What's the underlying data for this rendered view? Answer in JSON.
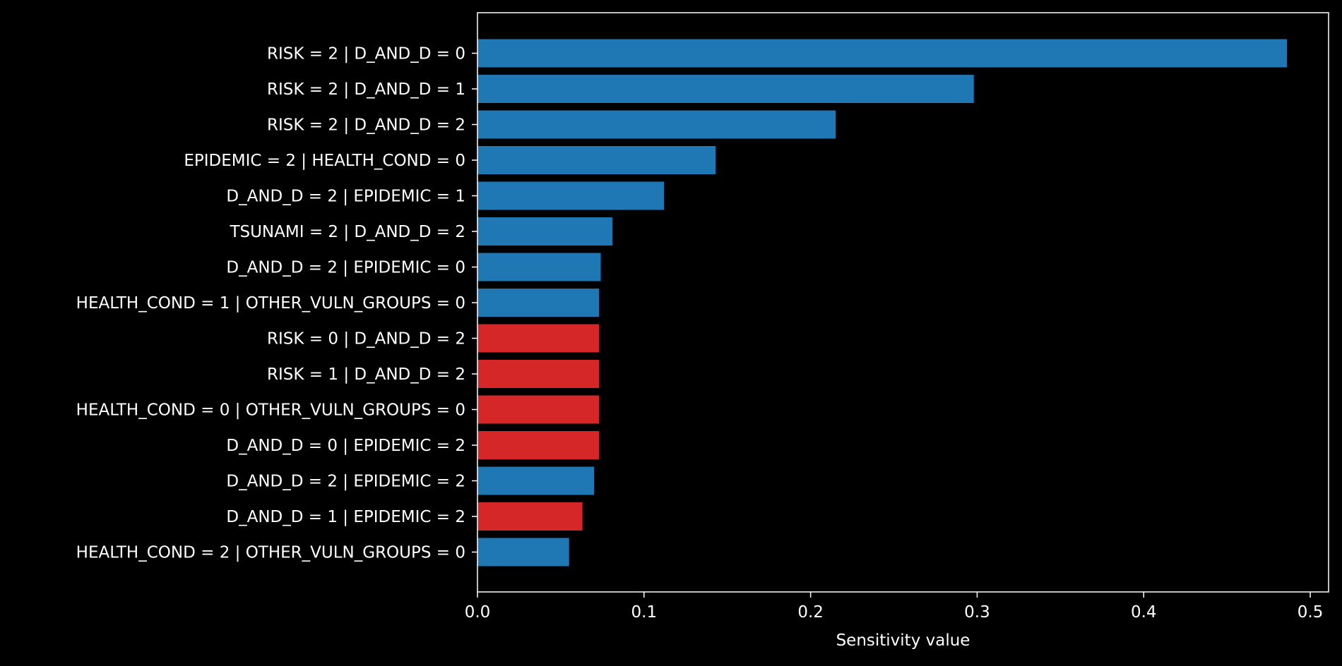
{
  "chart_data": {
    "type": "bar",
    "orientation": "horizontal",
    "title": "",
    "xlabel": "Sensitivity value",
    "ylabel": "",
    "xlim": [
      0,
      0.511
    ],
    "xticks": [
      0.0,
      0.1,
      0.2,
      0.3,
      0.4,
      0.5
    ],
    "xtick_labels": [
      "0.0",
      "0.1",
      "0.2",
      "0.3",
      "0.4",
      "0.5"
    ],
    "grid": false,
    "legend": "none",
    "colors": {
      "positive": "#1f77b4",
      "negative": "#d62728",
      "background": "#000000",
      "foreground": "#ffffff"
    },
    "categories": [
      "RISK = 2 | D_AND_D = 0",
      "RISK = 2 | D_AND_D = 1",
      "RISK = 2 | D_AND_D = 2",
      "EPIDEMIC = 2 | HEALTH_COND = 0",
      "D_AND_D = 2 | EPIDEMIC = 1",
      "TSUNAMI = 2 | D_AND_D = 2",
      "D_AND_D = 2 | EPIDEMIC = 0",
      "HEALTH_COND = 1 | OTHER_VULN_GROUPS = 0",
      "RISK = 0 | D_AND_D = 2",
      "RISK = 1 | D_AND_D = 2",
      "HEALTH_COND = 0 | OTHER_VULN_GROUPS = 0",
      "D_AND_D = 0 | EPIDEMIC = 2",
      "D_AND_D = 2 | EPIDEMIC = 2",
      "D_AND_D = 1 | EPIDEMIC = 2",
      "HEALTH_COND = 2 | OTHER_VULN_GROUPS = 0"
    ],
    "values": [
      0.486,
      0.298,
      0.215,
      0.143,
      0.112,
      0.081,
      0.074,
      0.073,
      0.073,
      0.073,
      0.073,
      0.073,
      0.07,
      0.063,
      0.055
    ],
    "bar_colors": [
      "positive",
      "positive",
      "positive",
      "positive",
      "positive",
      "positive",
      "positive",
      "positive",
      "negative",
      "negative",
      "negative",
      "negative",
      "positive",
      "negative",
      "positive"
    ]
  }
}
